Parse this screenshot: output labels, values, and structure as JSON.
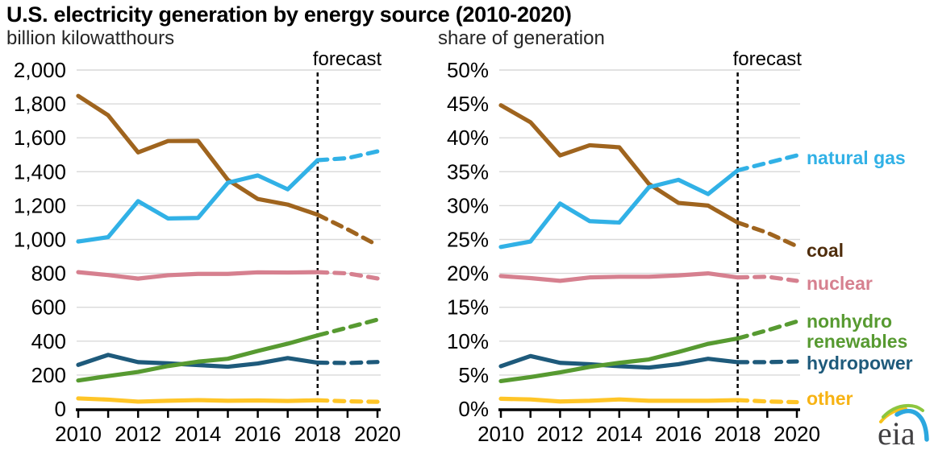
{
  "title": "U.S. electricity generation by energy source (2010-2020)",
  "chart_data": [
    {
      "type": "line",
      "ylabel": "billion kilowatthours",
      "x": [
        2010,
        2011,
        2012,
        2013,
        2014,
        2015,
        2016,
        2017,
        2018,
        2019,
        2020
      ],
      "xtick_values": [
        2010,
        2012,
        2014,
        2016,
        2018,
        2020
      ],
      "xtick_labels": [
        "2010",
        "2012",
        "2014",
        "2016",
        "2018",
        "2020"
      ],
      "ylim": [
        0,
        2000
      ],
      "ytick_values": [
        0,
        200,
        400,
        600,
        800,
        1000,
        1200,
        1400,
        1600,
        1800,
        2000
      ],
      "ytick_labels": [
        "0",
        "200",
        "400",
        "600",
        "800",
        "1,000",
        "1,200",
        "1,400",
        "1,600",
        "1,800",
        "2,000"
      ],
      "grid": "horizontal",
      "forecast_label": "forecast",
      "forecast_start_x": 2018,
      "series": [
        {
          "id": "other",
          "name": "other",
          "color": "#FFC527",
          "values": [
            62,
            55,
            43,
            48,
            52,
            48,
            50,
            47,
            51,
            45,
            42
          ]
        },
        {
          "id": "hydropower",
          "name": "hydropower",
          "color": "#1E5A7B",
          "values": [
            260,
            319,
            276,
            269,
            259,
            249,
            268,
            300,
            273,
            271,
            277
          ]
        },
        {
          "id": "nonhydro-renewables",
          "name": "nonhydro renewables",
          "color": "#579A31",
          "values": [
            168,
            194,
            218,
            253,
            279,
            296,
            342,
            385,
            434,
            480,
            527
          ]
        },
        {
          "id": "nuclear",
          "name": "nuclear",
          "color": "#D6808F",
          "values": [
            807,
            790,
            769,
            789,
            797,
            797,
            806,
            805,
            807,
            800,
            770
          ]
        },
        {
          "id": "coal",
          "name": "coal",
          "color": "#9F641E",
          "values": [
            1847,
            1733,
            1514,
            1581,
            1582,
            1352,
            1239,
            1206,
            1146,
            1060,
            966
          ]
        },
        {
          "id": "natural-gas",
          "name": "natural gas",
          "color": "#31B1E6",
          "values": [
            988,
            1014,
            1226,
            1124,
            1127,
            1335,
            1378,
            1296,
            1468,
            1480,
            1520
          ]
        }
      ]
    },
    {
      "type": "line",
      "ylabel": "share of generation",
      "x": [
        2010,
        2011,
        2012,
        2013,
        2014,
        2015,
        2016,
        2017,
        2018,
        2019,
        2020
      ],
      "xtick_values": [
        2010,
        2012,
        2014,
        2016,
        2018,
        2020
      ],
      "xtick_labels": [
        "2010",
        "2012",
        "2014",
        "2016",
        "2018",
        "2020"
      ],
      "ylim": [
        0,
        50
      ],
      "ytick_values": [
        0,
        5,
        10,
        15,
        20,
        25,
        30,
        35,
        40,
        45,
        50
      ],
      "ytick_labels": [
        "0%",
        "5%",
        "10%",
        "15%",
        "20%",
        "25%",
        "30%",
        "35%",
        "40%",
        "45%",
        "50%"
      ],
      "grid": "horizontal",
      "forecast_label": "forecast",
      "forecast_start_x": 2018,
      "series": [
        {
          "id": "other",
          "name": "other",
          "color": "#FFC527",
          "values": [
            1.5,
            1.4,
            1.1,
            1.2,
            1.4,
            1.2,
            1.2,
            1.2,
            1.3,
            1.1,
            1.0
          ]
        },
        {
          "id": "hydropower",
          "name": "hydropower",
          "color": "#1E5A7B",
          "values": [
            6.3,
            7.8,
            6.8,
            6.6,
            6.3,
            6.1,
            6.6,
            7.4,
            6.9,
            6.9,
            7.0
          ]
        },
        {
          "id": "nonhydro-renewables",
          "name": "nonhydro renewables",
          "color": "#579A31",
          "values": [
            4.1,
            4.7,
            5.4,
            6.2,
            6.8,
            7.3,
            8.4,
            9.6,
            10.4,
            11.6,
            12.9
          ]
        },
        {
          "id": "nuclear",
          "name": "nuclear",
          "color": "#D6808F",
          "values": [
            19.6,
            19.3,
            18.9,
            19.4,
            19.5,
            19.5,
            19.7,
            20.0,
            19.4,
            19.5,
            18.9
          ]
        },
        {
          "id": "coal",
          "name": "coal",
          "color": "#9F641E",
          "values": [
            44.8,
            42.3,
            37.4,
            38.9,
            38.6,
            33.2,
            30.4,
            30.0,
            27.5,
            26.0,
            24.0
          ]
        },
        {
          "id": "natural-gas",
          "name": "natural gas",
          "color": "#31B1E6",
          "values": [
            23.9,
            24.7,
            30.3,
            27.7,
            27.5,
            32.7,
            33.8,
            31.7,
            35.2,
            36.3,
            37.4
          ]
        }
      ]
    }
  ],
  "legend": {
    "items": [
      {
        "id": "natural-gas",
        "label": "natural gas",
        "color": "#31B1E6"
      },
      {
        "id": "coal",
        "label": "coal",
        "color": "#4F2D0C"
      },
      {
        "id": "nuclear",
        "label": "nuclear",
        "color": "#D6808F"
      },
      {
        "id": "nonhydro-renewables-line1",
        "label": "nonhydro",
        "color": "#579A31"
      },
      {
        "id": "nonhydro-renewables-line2",
        "label": "renewables",
        "color": "#579A31"
      },
      {
        "id": "hydropower",
        "label": "hydropower",
        "color": "#1E5A7B"
      },
      {
        "id": "other",
        "label": "other",
        "color": "#F7B314"
      }
    ]
  },
  "logo": {
    "text": "eia"
  }
}
